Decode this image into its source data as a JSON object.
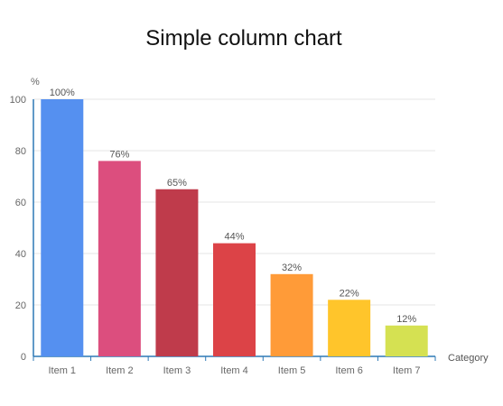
{
  "chart_data": {
    "type": "bar",
    "title": "Simple column chart",
    "xlabel": "Category",
    "ylabel": "%",
    "categories": [
      "Item 1",
      "Item 2",
      "Item 3",
      "Item 4",
      "Item 5",
      "Item 6",
      "Item 7"
    ],
    "values": [
      100,
      76,
      65,
      44,
      32,
      22,
      12
    ],
    "data_labels": [
      "100%",
      "76%",
      "65%",
      "44%",
      "32%",
      "22%",
      "12%"
    ],
    "yticks": [
      0,
      20,
      40,
      60,
      80,
      100
    ],
    "ylim": [
      0,
      100
    ],
    "grid": true,
    "colors": [
      "#5590f0",
      "#dc4e7e",
      "#bf3b4b",
      "#dc4347",
      "#ff9b38",
      "#ffc52b",
      "#d5e152"
    ],
    "axis_color": "#2d78b6",
    "grid_color": "#e6e6e6"
  }
}
